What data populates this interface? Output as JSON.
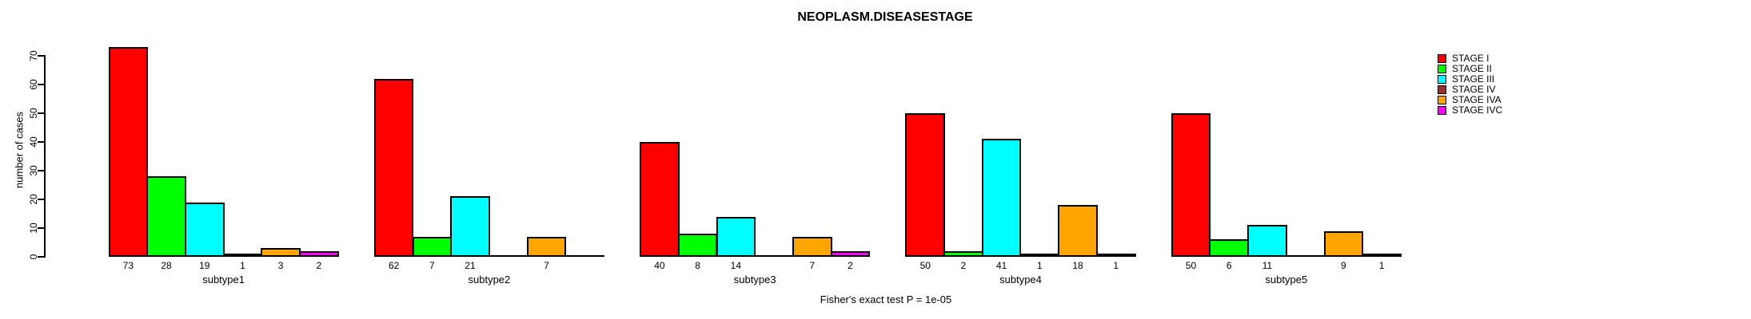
{
  "chart_data": {
    "type": "bar",
    "title": "NEOPLASM.DISEASESTAGE",
    "ylabel": "number of cases",
    "caption": "Fisher's exact test P = 1e-05",
    "categories": [
      "subtype1",
      "subtype2",
      "subtype3",
      "subtype4",
      "subtype5"
    ],
    "series": [
      {
        "name": "STAGE I",
        "color": "#FF0000",
        "values": [
          73,
          62,
          40,
          50,
          50
        ]
      },
      {
        "name": "STAGE II",
        "color": "#00FF00",
        "values": [
          28,
          7,
          8,
          2,
          6
        ]
      },
      {
        "name": "STAGE III",
        "color": "#00FFFF",
        "values": [
          19,
          21,
          14,
          41,
          11
        ]
      },
      {
        "name": "STAGE IV",
        "color": "#A52A2A",
        "values": [
          1,
          0,
          0,
          1,
          0
        ]
      },
      {
        "name": "STAGE IVA",
        "color": "#FFA500",
        "values": [
          3,
          7,
          7,
          18,
          9
        ]
      },
      {
        "name": "STAGE IVC",
        "color": "#FF00FF",
        "values": [
          2,
          0,
          2,
          1,
          1
        ]
      }
    ],
    "yticks": [
      0,
      10,
      20,
      30,
      40,
      50,
      60,
      70
    ],
    "ylim": [
      0,
      73
    ],
    "bar_value_labels": true,
    "grid": false,
    "legend_position": "top-right",
    "background_color": "#FFFFFF",
    "axis_color": "#000000"
  }
}
